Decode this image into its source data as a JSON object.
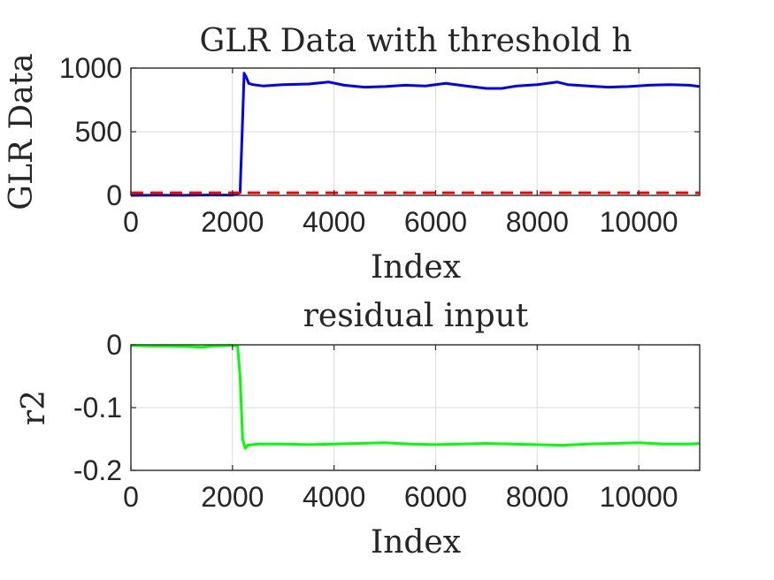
{
  "chart_data": [
    {
      "type": "line",
      "title": "GLR Data with threshold h",
      "xlabel": "Index",
      "ylabel": "GLR Data",
      "xlim": [
        0,
        11200
      ],
      "ylim": [
        0,
        1000
      ],
      "xticks": [
        0,
        2000,
        4000,
        6000,
        8000,
        10000
      ],
      "yticks": [
        0,
        500,
        1000
      ],
      "xtick_labels": [
        "0",
        "2000",
        "4000",
        "6000",
        "8000",
        "10000"
      ],
      "ytick_labels": [
        "0",
        "500",
        "1000"
      ],
      "grid": true,
      "series": [
        {
          "color": "#0000ff",
          "style": "solid",
          "x": [
            0,
            500,
            1000,
            1500,
            2000,
            2150,
            2200,
            2230,
            2270,
            2320,
            2400,
            2600,
            3000,
            3500,
            3900,
            4200,
            4600,
            5000,
            5400,
            5800,
            6200,
            6600,
            7000,
            7300,
            7600,
            8000,
            8400,
            8600,
            9000,
            9400,
            9800,
            10200,
            10600,
            11000,
            11200
          ],
          "y": [
            0,
            2,
            1,
            3,
            2,
            20,
            600,
            960,
            930,
            880,
            870,
            860,
            870,
            875,
            890,
            865,
            850,
            855,
            865,
            860,
            880,
            860,
            840,
            840,
            860,
            870,
            890,
            870,
            860,
            850,
            855,
            865,
            870,
            865,
            855
          ]
        },
        {
          "color": "#ff0000",
          "style": "dashed",
          "x": [
            0,
            11200
          ],
          "y": [
            20,
            20
          ]
        }
      ]
    },
    {
      "type": "line",
      "title": "residual input",
      "xlabel": "Index",
      "ylabel": "r2",
      "xlim": [
        0,
        11200
      ],
      "ylim": [
        -0.2,
        0
      ],
      "xticks": [
        0,
        2000,
        4000,
        6000,
        8000,
        10000
      ],
      "yticks": [
        -0.2,
        -0.1,
        0
      ],
      "xtick_labels": [
        "0",
        "2000",
        "4000",
        "6000",
        "8000",
        "10000"
      ],
      "ytick_labels": [
        "-0.2",
        "-0.1",
        "0"
      ],
      "grid": true,
      "series": [
        {
          "color": "#00ff00",
          "style": "solid",
          "x": [
            0,
            400,
            800,
            1200,
            1400,
            1600,
            2000,
            2100,
            2150,
            2200,
            2250,
            2300,
            2500,
            3000,
            3500,
            4000,
            4500,
            5000,
            5500,
            6000,
            6500,
            7000,
            7500,
            8000,
            8500,
            9000,
            9500,
            10000,
            10500,
            11000,
            11200
          ],
          "y": [
            -0.001,
            -0.002,
            -0.002,
            -0.003,
            -0.004,
            -0.002,
            -0.001,
            -0.002,
            -0.05,
            -0.15,
            -0.165,
            -0.16,
            -0.158,
            -0.158,
            -0.159,
            -0.158,
            -0.157,
            -0.156,
            -0.158,
            -0.159,
            -0.158,
            -0.157,
            -0.158,
            -0.159,
            -0.16,
            -0.158,
            -0.157,
            -0.156,
            -0.158,
            -0.158,
            -0.157
          ]
        }
      ]
    }
  ]
}
